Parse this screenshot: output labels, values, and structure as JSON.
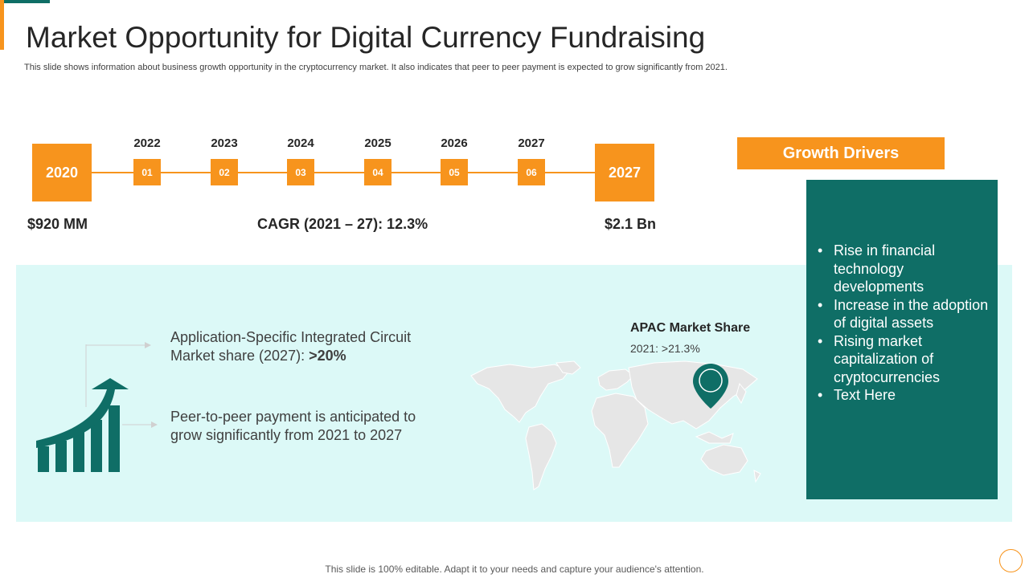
{
  "slide": {
    "title": "Market Opportunity for Digital Currency Fundraising",
    "subtitle": "This slide shows information about business growth opportunity in the cryptocurrency market. It also indicates that peer to peer payment is expected to grow significantly from 2021."
  },
  "timeline": {
    "start_year": "2020",
    "end_year": "2027",
    "steps": [
      {
        "year": "2022",
        "label": "01"
      },
      {
        "year": "2023",
        "label": "02"
      },
      {
        "year": "2024",
        "label": "03"
      },
      {
        "year": "2025",
        "label": "04"
      },
      {
        "year": "2026",
        "label": "05"
      },
      {
        "year": "2027",
        "label": "06"
      }
    ],
    "start_value": "$920 MM",
    "cagr": "CAGR (2021 – 27): 12.3%",
    "end_value": "$2.1 Bn"
  },
  "insights": {
    "asic_text": "Application-Specific Integrated Circuit Market share (2027): ",
    "asic_value": ">20%",
    "p2p_text": "Peer-to-peer payment is anticipated to grow significantly from 2021 to 2027"
  },
  "apac": {
    "title": "APAC Market Share",
    "value": "2021: >21.3%"
  },
  "growth_drivers": {
    "header": "Growth Drivers",
    "items": [
      "Rise in financial technology developments",
      "Increase in the adoption of digital assets",
      "Rising market capitalization of cryptocurrencies",
      "Text Here"
    ]
  },
  "footer": "This slide is 100% editable. Adapt it to your needs and capture your audience's attention.",
  "colors": {
    "orange": "#f7941d",
    "teal": "#0f6e66",
    "panel": "#dcf9f7"
  },
  "icons": [
    "growth-chart-icon",
    "world-map",
    "location-pin-icon"
  ]
}
